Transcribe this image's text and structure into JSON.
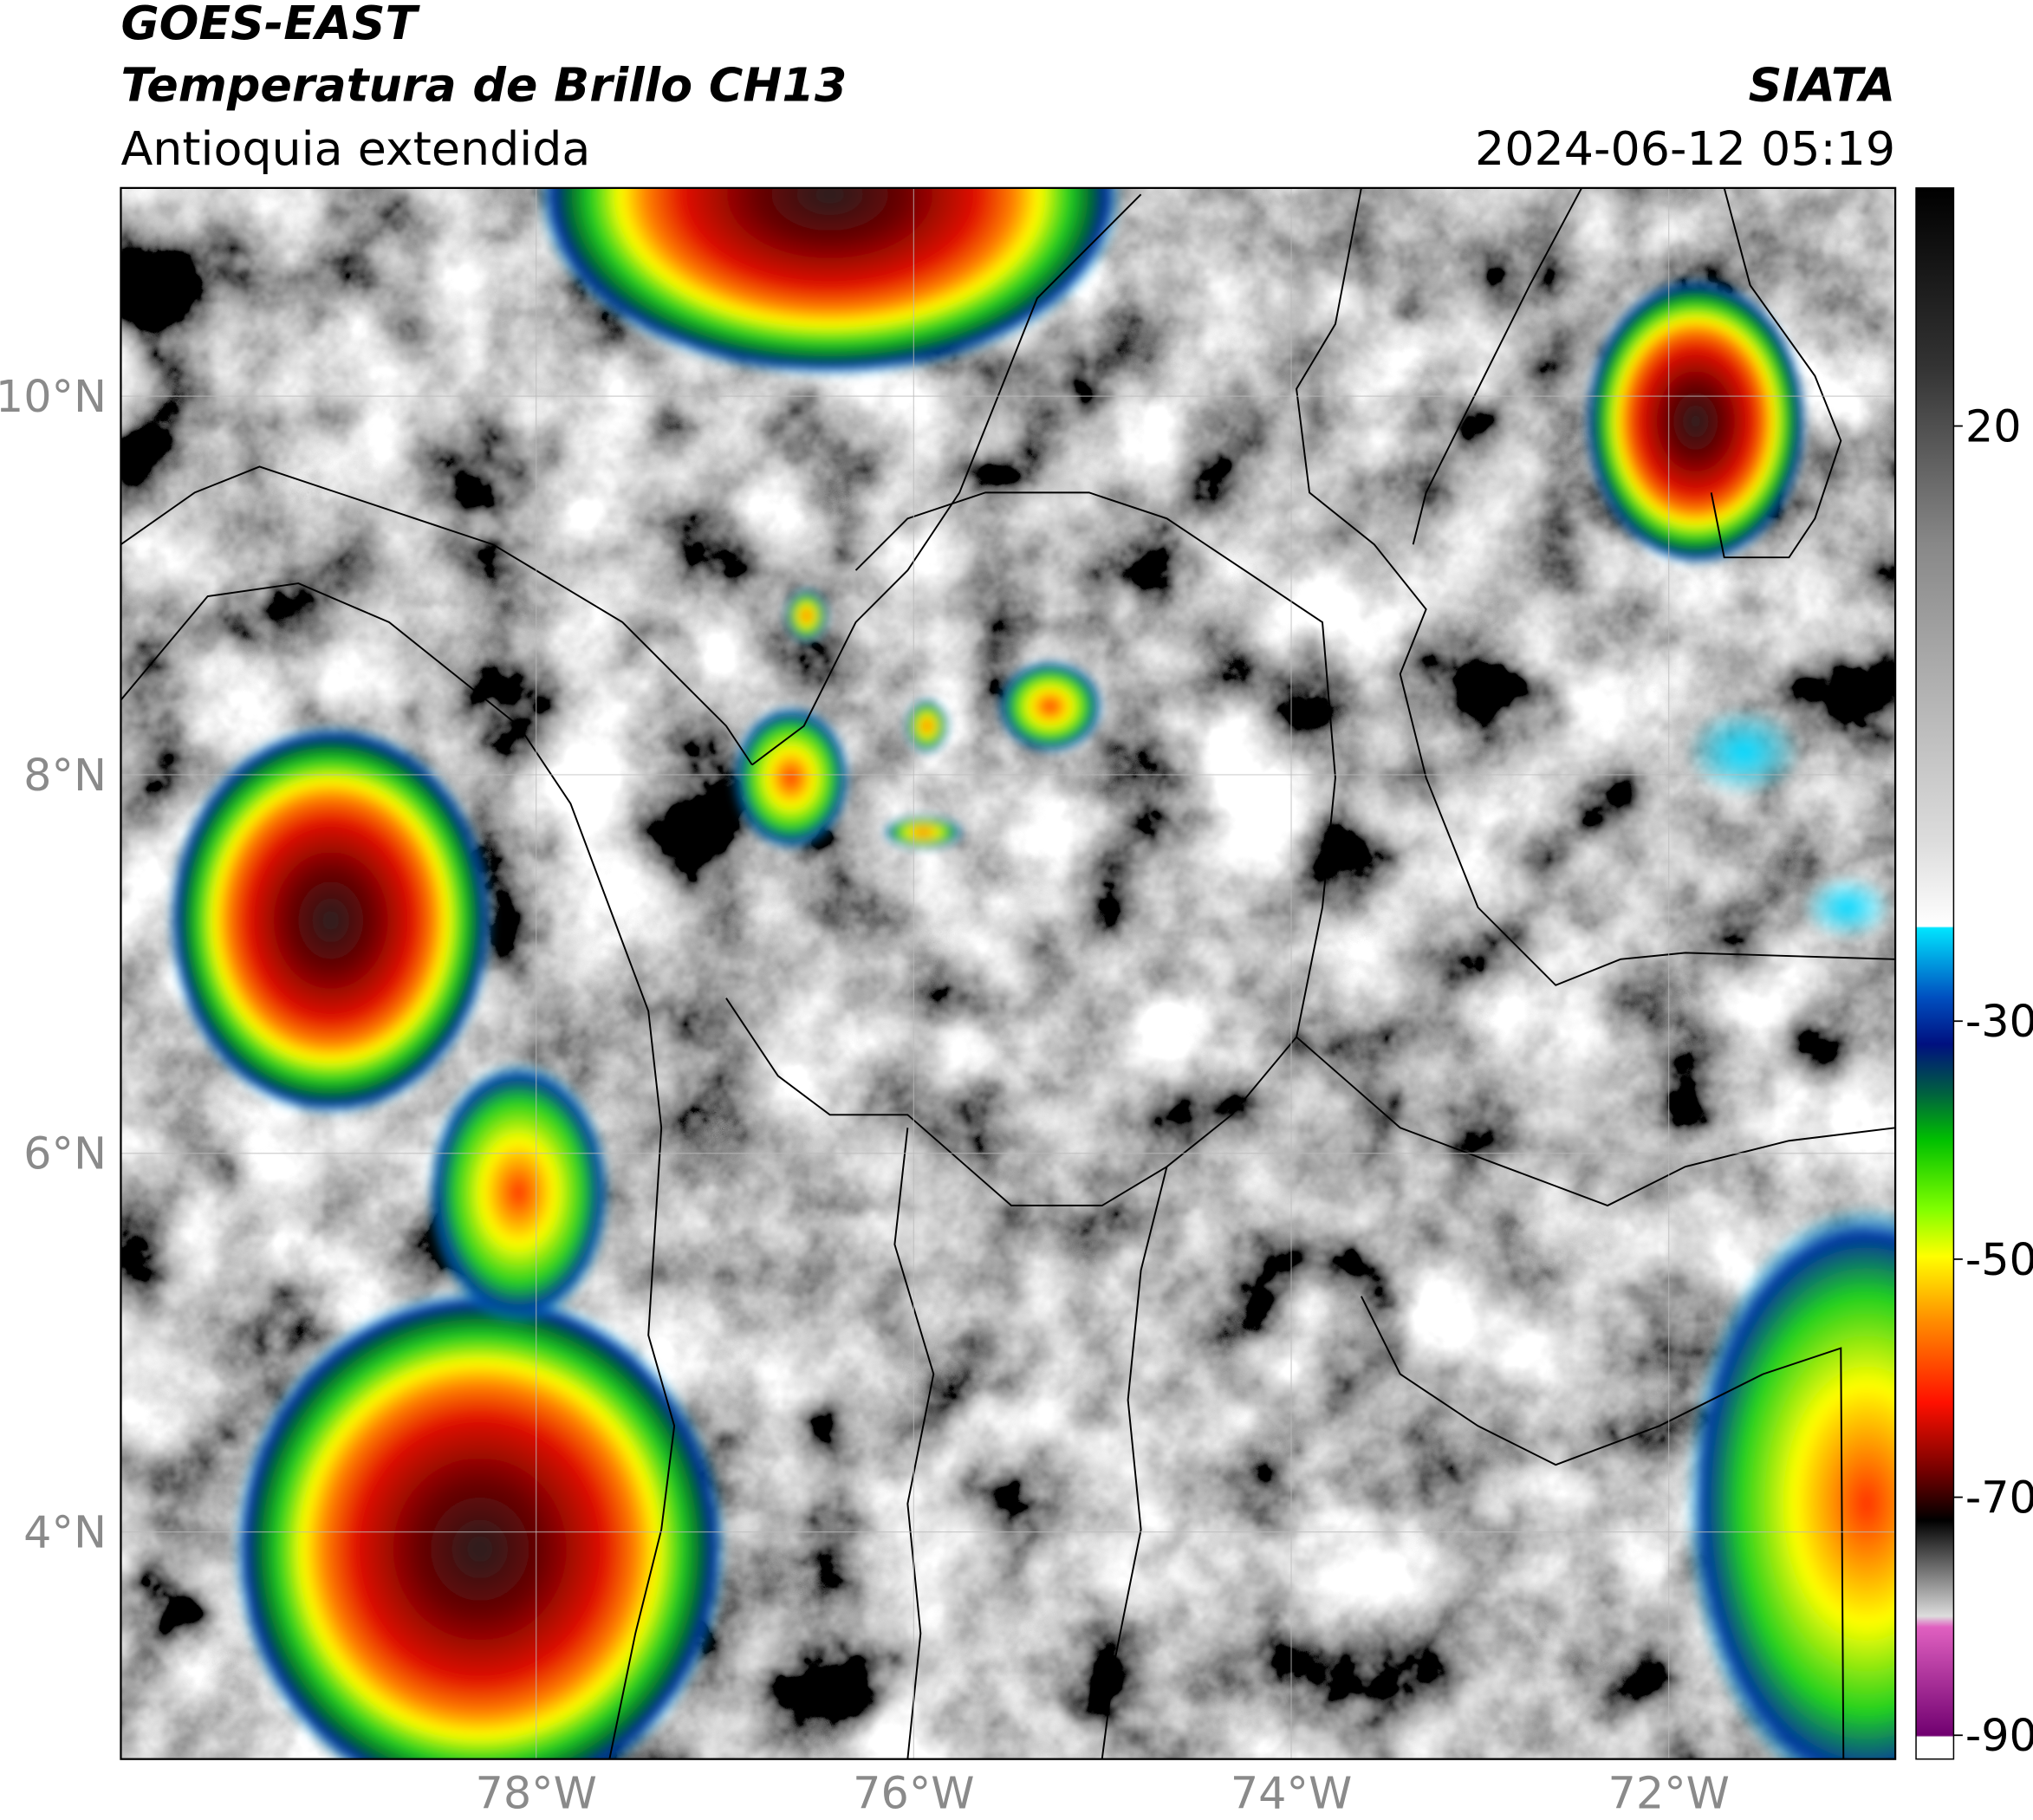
{
  "header": {
    "satellite": "GOES-EAST",
    "product": "Temperatura de Brillo CH13",
    "region": "Antioquia extendida",
    "agency": "SIATA",
    "datetime": "2024-06-12 05:19"
  },
  "map": {
    "xlim": [
      -80.2,
      -70.8
    ],
    "ylim": [
      2.8,
      11.1
    ],
    "xticks": [
      {
        "value": -78,
        "label": "78°W"
      },
      {
        "value": -76,
        "label": "76°W"
      },
      {
        "value": -74,
        "label": "74°W"
      },
      {
        "value": -72,
        "label": "72°W"
      }
    ],
    "yticks": [
      {
        "value": 4,
        "label": "4°N"
      },
      {
        "value": 6,
        "label": "6°N"
      },
      {
        "value": 8,
        "label": "8°N"
      },
      {
        "value": 10,
        "label": "10°N"
      }
    ],
    "grid": true
  },
  "colorbar": {
    "lim": [
      -92,
      40
    ],
    "ticks": [
      20,
      -30,
      -50,
      -70,
      -90
    ]
  }
}
